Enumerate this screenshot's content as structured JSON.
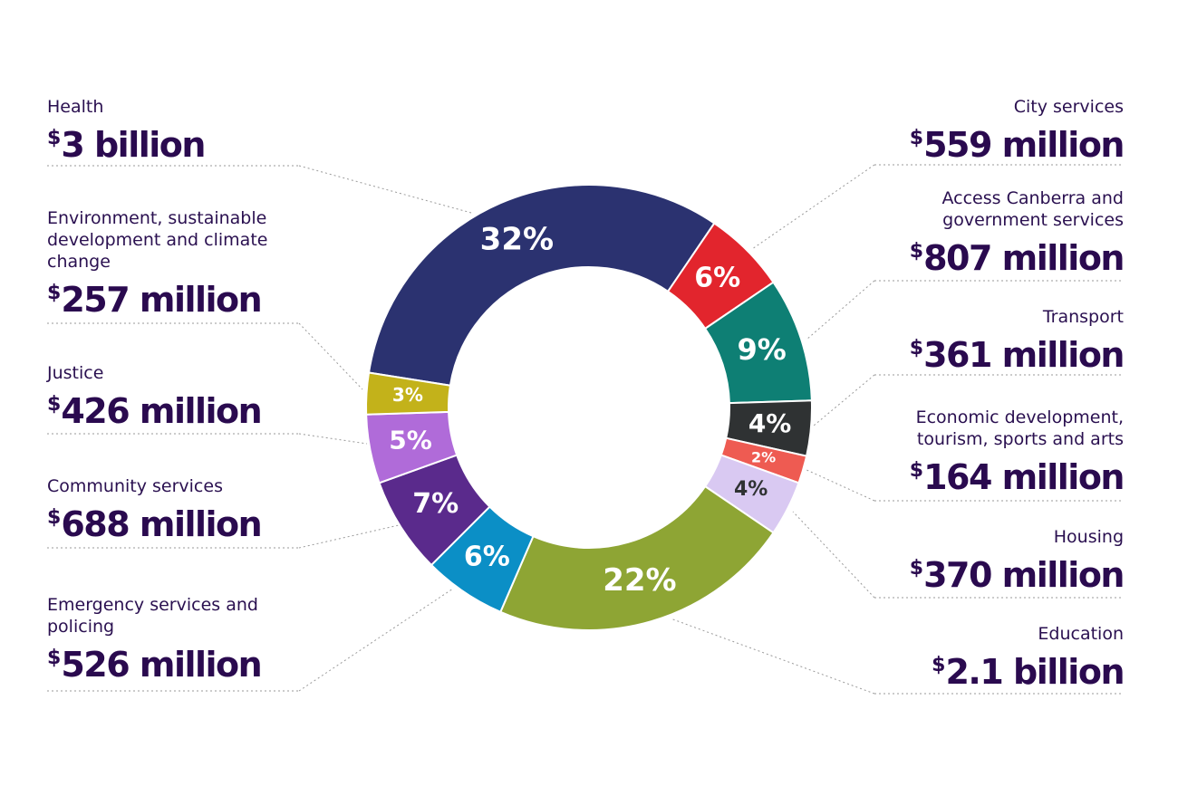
{
  "chart_data": {
    "type": "donut",
    "categories": [
      "Health",
      "City services",
      "Access Canberra and government services",
      "Transport",
      "Economic development, tourism, sports and arts",
      "Housing",
      "Education",
      "Emergency services and policing",
      "Community services",
      "Justice",
      "Environment, sustainable development and climate change"
    ],
    "values": [
      32,
      6,
      9,
      4,
      2,
      4,
      22,
      6,
      7,
      5,
      3
    ],
    "value_labels": [
      "32%",
      "6%",
      "9%",
      "4%",
      "2%",
      "4%",
      "22%",
      "6%",
      "7%",
      "5%",
      "3%"
    ],
    "amounts": [
      "$3 billion",
      "$559 million",
      "$807 million",
      "$361 million",
      "$164 million",
      "$370 million",
      "$2.1 billion",
      "$526 million",
      "$688 million",
      "$426 million",
      "$257 million"
    ],
    "colors": [
      "#2b3270",
      "#e2252d",
      "#0e7f74",
      "#2f3233",
      "#ee5b52",
      "#d9c9f2",
      "#8ea534",
      "#0b8fc6",
      "#5a2a8c",
      "#b06bd9",
      "#c3b21a"
    ]
  }
}
